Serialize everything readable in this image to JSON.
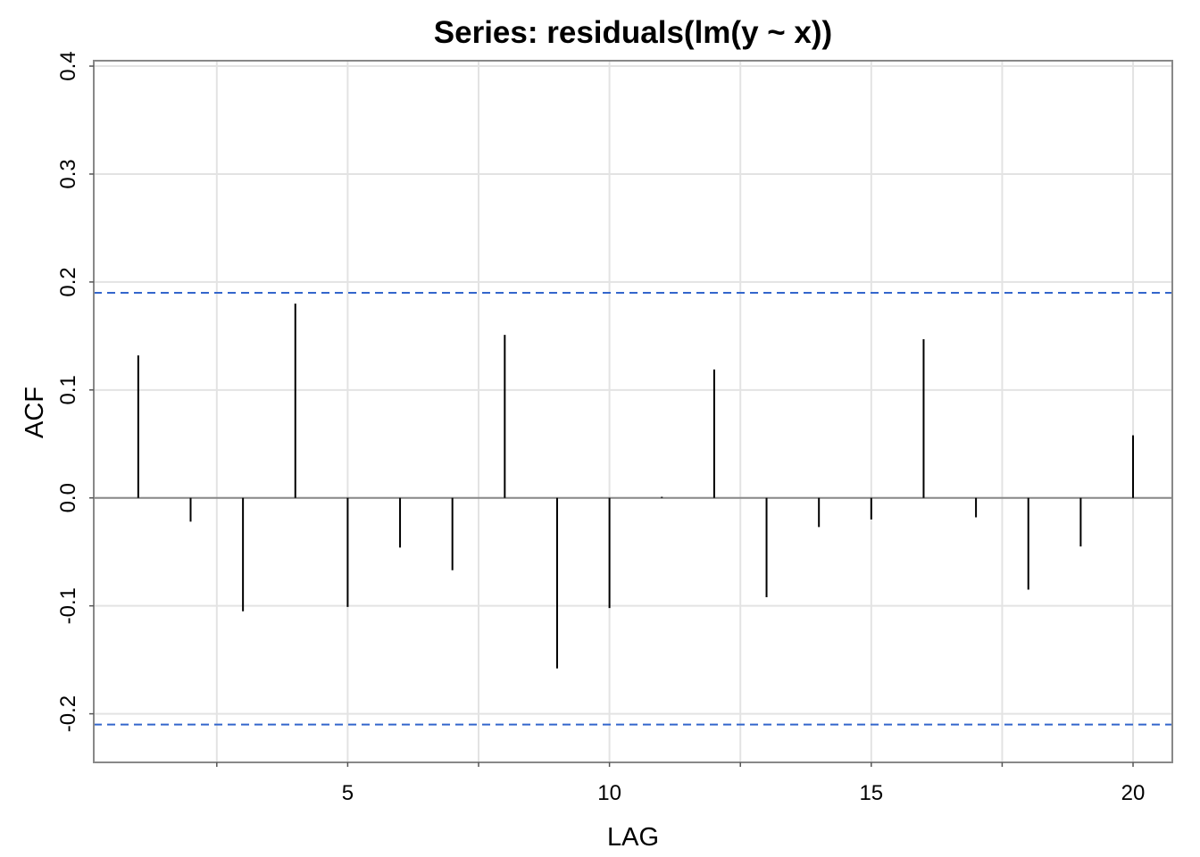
{
  "chart_data": {
    "type": "bar",
    "title": "Series:  residuals(lm(y ~ x))",
    "xlabel": "LAG",
    "ylabel": "ACF",
    "xlim": [
      0.15,
      20.75
    ],
    "ylim": [
      -0.245,
      0.405
    ],
    "x_ticks": [
      5,
      10,
      15,
      20
    ],
    "x_ticks_labels": [
      "5",
      "10",
      "15",
      "20"
    ],
    "x_minor_ticks": [
      2.5,
      7.5,
      12.5,
      17.5
    ],
    "y_ticks": [
      -0.2,
      -0.1,
      0.0,
      0.1,
      0.2,
      0.3,
      0.4
    ],
    "y_ticks_labels": [
      "-0.2",
      "-0.1",
      "0.0",
      "0.1",
      "0.2",
      "0.3",
      "0.4"
    ],
    "grid": true,
    "lags": [
      1,
      2,
      3,
      4,
      5,
      6,
      7,
      8,
      9,
      10,
      11,
      12,
      13,
      14,
      15,
      16,
      17,
      18,
      19,
      20
    ],
    "values": [
      0.132,
      -0.022,
      -0.105,
      0.18,
      -0.101,
      -0.046,
      -0.067,
      0.151,
      -0.158,
      -0.102,
      0.001,
      0.119,
      -0.092,
      -0.027,
      -0.02,
      0.147,
      -0.018,
      -0.085,
      -0.045,
      0.058
    ],
    "confidence_bounds": [
      0.19,
      -0.21
    ],
    "confidence_color": "#3366cc"
  }
}
